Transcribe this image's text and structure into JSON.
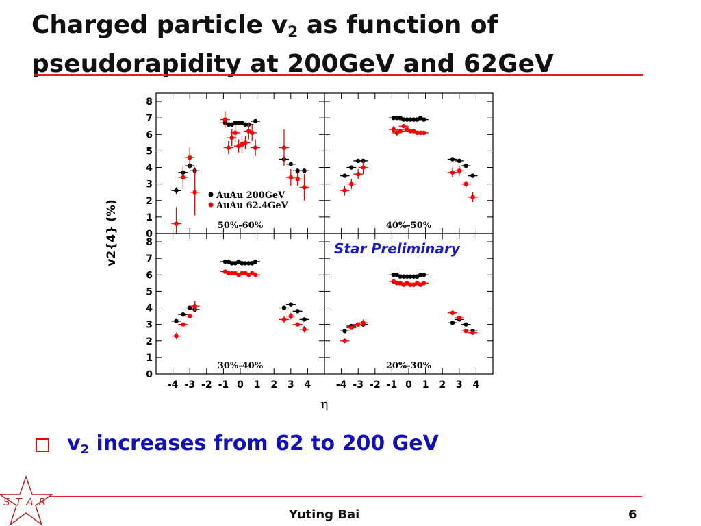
{
  "slide": {
    "title_part1": "Charged particle v",
    "title_sub": "2",
    "title_part2": " as function of pseudorapidity at 200GeV and 62GeV",
    "bullet_part1": "v",
    "bullet_sub": "2",
    "bullet_part2": " increases from 62 to 200 GeV",
    "author": "Yuting Bai",
    "page": "6",
    "logo_text": "STAR"
  },
  "colors": {
    "accent": "#d22222",
    "series_200": "#000000",
    "series_62": "#ff0000",
    "bullet_text": "#1010c0",
    "prelim": "#1818d0"
  },
  "chart_data": {
    "type": "scatter",
    "ylabel": "v2{4} (%)",
    "xlabel": "η",
    "annotation": "Star Preliminary",
    "xlim": [
      -5,
      5
    ],
    "ylim": [
      0,
      8.5
    ],
    "xticks": [
      -4,
      -3,
      -2,
      -1,
      0,
      1,
      2,
      3,
      4
    ],
    "yticks": [
      0,
      1,
      2,
      3,
      4,
      5,
      6,
      7,
      8
    ],
    "legend": [
      "AuAu 200GeV",
      "AuAu 62.4GeV"
    ],
    "legend_position": "panel 50%-60%, lower-middle",
    "panels": [
      {
        "label": "50%-60%",
        "series": [
          {
            "name": "AuAu 200GeV",
            "x": [
              -3.8,
              -3.4,
              -3.0,
              -2.7,
              -0.9,
              -0.7,
              -0.5,
              -0.3,
              -0.1,
              0.1,
              0.3,
              0.5,
              0.9,
              2.6,
              3.0,
              3.4,
              3.8
            ],
            "y": [
              2.6,
              3.7,
              4.1,
              3.8,
              6.7,
              6.6,
              6.6,
              6.7,
              6.7,
              6.7,
              6.6,
              6.6,
              6.8,
              4.5,
              4.2,
              3.8,
              3.8
            ],
            "err": [
              0.2,
              0.2,
              0.2,
              0.2,
              0.1,
              0.1,
              0.1,
              0.1,
              0.1,
              0.1,
              0.1,
              0.1,
              0.1,
              0.2,
              0.1,
              0.1,
              0.1
            ]
          },
          {
            "name": "AuAu 62.4GeV",
            "x": [
              -3.8,
              -3.4,
              -3.0,
              -2.7,
              -0.9,
              -0.7,
              -0.5,
              -0.3,
              -0.1,
              0.1,
              0.3,
              0.5,
              0.7,
              0.9,
              2.6,
              3.0,
              3.4,
              3.8
            ],
            "y": [
              0.6,
              3.4,
              4.6,
              2.5,
              6.9,
              5.2,
              5.8,
              6.1,
              5.3,
              5.4,
              5.5,
              6.2,
              6.1,
              5.2,
              5.2,
              3.4,
              3.3,
              2.8
            ],
            "err": [
              1.0,
              0.7,
              0.6,
              1.4,
              0.5,
              0.4,
              0.5,
              0.6,
              0.4,
              0.5,
              0.4,
              0.5,
              0.5,
              0.5,
              1.1,
              0.5,
              0.4,
              0.8
            ]
          }
        ]
      },
      {
        "label": "40%-50%",
        "series": [
          {
            "name": "AuAu 200GeV",
            "x": [
              -3.8,
              -3.4,
              -3.0,
              -2.7,
              -0.9,
              -0.7,
              -0.5,
              -0.3,
              -0.1,
              0.1,
              0.3,
              0.5,
              0.7,
              0.9,
              2.6,
              3.0,
              3.4,
              3.8
            ],
            "y": [
              3.5,
              4.0,
              4.4,
              4.4,
              7.0,
              7.0,
              7.0,
              6.9,
              6.9,
              6.9,
              6.9,
              6.9,
              7.0,
              6.9,
              4.5,
              4.4,
              4.1,
              3.5
            ],
            "err": [
              0.1,
              0.1,
              0.1,
              0.1,
              0.1,
              0.1,
              0.1,
              0.1,
              0.1,
              0.1,
              0.1,
              0.1,
              0.1,
              0.1,
              0.1,
              0.1,
              0.1,
              0.1
            ]
          },
          {
            "name": "AuAu 62.4GeV",
            "x": [
              -3.8,
              -3.4,
              -3.0,
              -2.7,
              -0.9,
              -0.7,
              -0.5,
              -0.3,
              -0.1,
              0.1,
              0.3,
              0.5,
              0.7,
              0.9,
              2.6,
              3.0,
              3.4,
              3.8
            ],
            "y": [
              2.6,
              3.0,
              3.6,
              4.0,
              6.3,
              6.1,
              6.2,
              6.5,
              6.3,
              6.2,
              6.2,
              6.1,
              6.1,
              6.1,
              3.7,
              3.8,
              3.0,
              2.2
            ],
            "err": [
              0.3,
              0.3,
              0.3,
              0.4,
              0.2,
              0.2,
              0.1,
              0.1,
              0.1,
              0.1,
              0.1,
              0.1,
              0.1,
              0.1,
              0.3,
              0.3,
              0.2,
              0.3
            ]
          }
        ]
      },
      {
        "label": "30%-40%",
        "series": [
          {
            "name": "AuAu 200GeV",
            "x": [
              -3.8,
              -3.4,
              -3.0,
              -2.7,
              -0.9,
              -0.7,
              -0.5,
              -0.3,
              -0.1,
              0.1,
              0.3,
              0.5,
              0.7,
              0.9,
              2.6,
              3.0,
              3.4,
              3.8
            ],
            "y": [
              3.2,
              3.6,
              4.0,
              3.9,
              6.8,
              6.8,
              6.7,
              6.7,
              6.8,
              6.7,
              6.7,
              6.7,
              6.7,
              6.8,
              4.0,
              4.2,
              3.8,
              3.3
            ],
            "err": [
              0.1,
              0.1,
              0.1,
              0.1,
              0.1,
              0.1,
              0.1,
              0.1,
              0.1,
              0.1,
              0.1,
              0.1,
              0.1,
              0.1,
              0.1,
              0.1,
              0.1,
              0.1
            ]
          },
          {
            "name": "AuAu 62.4GeV",
            "x": [
              -3.8,
              -3.4,
              -3.0,
              -2.7,
              -0.9,
              -0.7,
              -0.5,
              -0.3,
              -0.1,
              0.1,
              0.3,
              0.5,
              0.7,
              0.9,
              2.6,
              3.0,
              3.4,
              3.8
            ],
            "y": [
              2.3,
              3.0,
              3.5,
              4.1,
              6.2,
              6.1,
              6.1,
              6.1,
              6.0,
              6.1,
              6.1,
              6.0,
              6.1,
              6.0,
              3.3,
              3.5,
              3.0,
              2.7
            ],
            "err": [
              0.2,
              0.1,
              0.1,
              0.3,
              0.1,
              0.1,
              0.1,
              0.1,
              0.1,
              0.1,
              0.1,
              0.1,
              0.1,
              0.1,
              0.2,
              0.2,
              0.1,
              0.2
            ]
          }
        ]
      },
      {
        "label": "20%-30%",
        "series": [
          {
            "name": "AuAu 200GeV",
            "x": [
              -3.8,
              -3.4,
              -3.0,
              -2.7,
              -0.9,
              -0.7,
              -0.5,
              -0.3,
              -0.1,
              0.1,
              0.3,
              0.5,
              0.7,
              0.9,
              2.6,
              3.0,
              3.4,
              3.8
            ],
            "y": [
              2.6,
              2.9,
              3.0,
              3.0,
              6.0,
              6.0,
              5.9,
              5.9,
              5.9,
              5.9,
              5.9,
              5.9,
              6.0,
              6.0,
              3.1,
              3.3,
              3.0,
              2.6
            ],
            "err": [
              0.1,
              0.1,
              0.1,
              0.1,
              0.05,
              0.05,
              0.05,
              0.05,
              0.05,
              0.05,
              0.05,
              0.05,
              0.05,
              0.05,
              0.1,
              0.1,
              0.1,
              0.1
            ]
          },
          {
            "name": "AuAu 62.4GeV",
            "x": [
              -3.8,
              -3.4,
              -3.0,
              -2.7,
              -0.9,
              -0.7,
              -0.5,
              -0.3,
              -0.1,
              0.1,
              0.3,
              0.5,
              0.7,
              0.9,
              2.6,
              3.0,
              3.4,
              3.8
            ],
            "y": [
              2.0,
              2.8,
              3.0,
              3.1,
              5.6,
              5.5,
              5.5,
              5.4,
              5.5,
              5.4,
              5.4,
              5.5,
              5.4,
              5.5,
              3.7,
              3.4,
              2.6,
              2.5
            ],
            "err": [
              0.15,
              0.1,
              0.1,
              0.2,
              0.05,
              0.05,
              0.05,
              0.05,
              0.05,
              0.05,
              0.05,
              0.05,
              0.05,
              0.05,
              0.15,
              0.1,
              0.1,
              0.1
            ]
          }
        ]
      }
    ]
  }
}
